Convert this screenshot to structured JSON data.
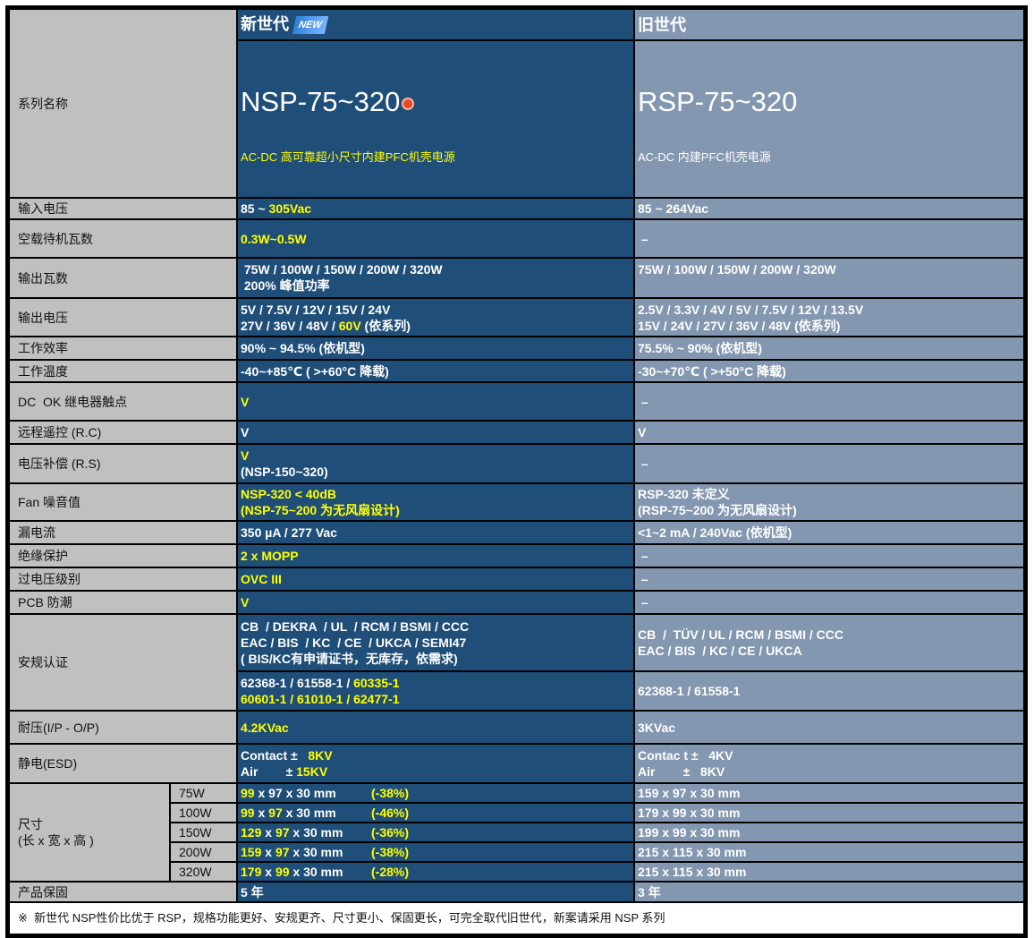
{
  "colors": {
    "label_bg": "#c0c0c0",
    "new_bg": "#1f4e79",
    "old_bg": "#8497b0",
    "highlight": "#ffff00"
  },
  "header": {
    "label": "系列名称",
    "new_generation": "新世代",
    "new_badge": "NEW",
    "new_series": "NSP-75~320",
    "new_series_icon": "crown-badge-icon",
    "new_desc": "AC-DC 高可靠超小尺寸内建PFC机壳电源",
    "old_generation": "旧世代",
    "old_series": "RSP-75~320",
    "old_desc": "AC-DC 内建PFC机壳电源"
  },
  "rows": [
    {
      "label": "输入电压",
      "new": [
        [
          {
            "t": "85 ~ "
          },
          {
            "t": "305Vac",
            "hl": true
          }
        ]
      ],
      "old": [
        [
          {
            "t": "85 ~ 264Vac"
          }
        ]
      ]
    },
    {
      "label": "空载待机瓦数",
      "new": [
        [
          {
            "t": "0.3W~0.5W",
            "hl": true
          }
        ]
      ],
      "old": [
        [
          {
            "t": " –"
          }
        ]
      ]
    },
    {
      "label": "输出瓦数",
      "top": true,
      "new": [
        [
          {
            "t": " 75W / 100W / 150W / 200W / 320W"
          }
        ],
        [
          {
            "t": " 200% 峰值功率"
          }
        ]
      ],
      "old": [
        [
          {
            "t": "75W / 100W / 150W / 200W / 320W"
          }
        ]
      ]
    },
    {
      "label": "输出电压",
      "new": [
        [
          {
            "t": "5V / 7.5V / 12V / 15V / 24V"
          }
        ],
        [
          {
            "t": "27V / 36V / 48V / "
          },
          {
            "t": "60V",
            "hl": true
          },
          {
            "t": " (依系列)"
          }
        ]
      ],
      "old": [
        [
          {
            "t": "2.5V / 3.3V / 4V / 5V / 7.5V / 12V / 13.5V"
          }
        ],
        [
          {
            "t": "15V / 24V / 27V / 36V / 48V (依系列)"
          }
        ]
      ]
    },
    {
      "label": "工作效率",
      "new": [
        [
          {
            "t": "90% ~ 94.5% (依机型)"
          }
        ]
      ],
      "old": [
        [
          {
            "t": "75.5% ~ 90% (依机型)"
          }
        ]
      ]
    },
    {
      "label": "工作温度",
      "new": [
        [
          {
            "t": "-40~+85℃ ( >+60°C 降载)"
          }
        ]
      ],
      "old": [
        [
          {
            "t": "-30~+70℃ ( >+50°C 降载)"
          }
        ]
      ]
    },
    {
      "label": "DC  OK 继电器触点",
      "new": [
        [
          {
            "t": "V",
            "hl": true
          }
        ]
      ],
      "old": [
        [
          {
            "t": " –"
          }
        ]
      ]
    },
    {
      "label": "远程遥控 (R.C)",
      "new": [
        [
          {
            "t": "V"
          }
        ]
      ],
      "old": [
        [
          {
            "t": "V"
          }
        ]
      ]
    },
    {
      "label": "电压补偿 (R.S)",
      "new": [
        [
          {
            "t": "V",
            "hl": true
          }
        ],
        [
          {
            "t": "(NSP-150~320)"
          }
        ]
      ],
      "old": [
        [
          {
            "t": " –"
          }
        ]
      ]
    },
    {
      "label": "Fan 噪音值",
      "new": [
        [
          {
            "t": "NSP-320 < 40dB",
            "hl": true
          }
        ],
        [
          {
            "t": "(NSP-75~200 为无风扇设计)",
            "hl": true
          }
        ]
      ],
      "old": [
        [
          {
            "t": "RSP-320 未定义"
          }
        ],
        [
          {
            "t": "(RSP-75~200 为无风扇设计)"
          }
        ]
      ]
    },
    {
      "label": "漏电流",
      "new": [
        [
          {
            "t": "350 µA / 277 Vac"
          }
        ]
      ],
      "old": [
        [
          {
            "t": "<1~2 mA / 240Vac (依机型)"
          }
        ]
      ]
    },
    {
      "label": "绝缘保护",
      "new": [
        [
          {
            "t": "2 x MOPP",
            "hl": true
          }
        ]
      ],
      "old": [
        [
          {
            "t": " –"
          }
        ]
      ]
    },
    {
      "label": "过电压级别",
      "new": [
        [
          {
            "t": "OVC III",
            "hl": true
          }
        ]
      ],
      "old": [
        [
          {
            "t": " –"
          }
        ]
      ]
    },
    {
      "label": "PCB 防潮",
      "new": [
        [
          {
            "t": "V",
            "hl": true
          }
        ]
      ],
      "old": [
        [
          {
            "t": " –"
          }
        ]
      ]
    }
  ],
  "safety": {
    "label": "安规认证",
    "new_a": [
      [
        {
          "t": "CB  / DEKRA  / UL  / RCM / BSMI / CCC"
        }
      ],
      [
        {
          "t": "EAC / BIS  / KC  / CE  / UKCA / SEMI47"
        }
      ],
      [
        {
          "t": "( BIS/KC有申请证书，无库存，依需求)"
        }
      ]
    ],
    "old_a": [
      [
        {
          "t": "CB  /  TÜV / UL / RCM / BSMI / CCC"
        }
      ],
      [
        {
          "t": "EAC / BIS  / KC / CE / UKCA"
        }
      ]
    ],
    "new_b": [
      [
        {
          "t": "62368-1 / 61558-1 / "
        },
        {
          "t": "60335-1",
          "hl": true
        }
      ],
      [
        {
          "t": "60601-1 / 61010-1 / 62477-1",
          "hl": true
        }
      ]
    ],
    "old_b": [
      [
        {
          "t": "62368-1 / 61558-1"
        }
      ]
    ]
  },
  "rows2": [
    {
      "label": "耐压(I/P - O/P)",
      "new": [
        [
          {
            "t": "4.2KVac",
            "hl": true
          }
        ]
      ],
      "old": [
        [
          {
            "t": "3KVac"
          }
        ]
      ]
    },
    {
      "label": "静电(ESD)",
      "new": [
        [
          {
            "t": "Contact ±   "
          },
          {
            "t": "8KV",
            "hl": true
          }
        ],
        [
          {
            "t": "Air        ± "
          },
          {
            "t": "15KV",
            "hl": true
          }
        ]
      ],
      "old": [
        [
          {
            "t": "Contac t ±   4KV"
          }
        ],
        [
          {
            "t": "Air        ±   8KV"
          }
        ]
      ]
    }
  ],
  "size": {
    "label_line1": "尺寸",
    "label_line2": "(长 x 宽 x 高 )",
    "items": [
      {
        "watt": "75W",
        "new": [
          {
            "t": "99",
            "hl": true
          },
          {
            "t": " x 97 x 30 mm"
          }
        ],
        "pct": "(-38%)",
        "old": "159 x 97 x 30 mm"
      },
      {
        "watt": "100W",
        "new": [
          {
            "t": "99",
            "hl": true
          },
          {
            "t": " x "
          },
          {
            "t": "97",
            "hl": true
          },
          {
            "t": " x 30 mm"
          }
        ],
        "pct": "(-46%)",
        "old": "179 x 99 x 30 mm"
      },
      {
        "watt": "150W",
        "new": [
          {
            "t": "129",
            "hl": true
          },
          {
            "t": " x "
          },
          {
            "t": "97",
            "hl": true
          },
          {
            "t": " x 30 mm"
          }
        ],
        "pct": "(-36%)",
        "old": "199 x 99 x 30 mm"
      },
      {
        "watt": "200W",
        "new": [
          {
            "t": "159",
            "hl": true
          },
          {
            "t": " x "
          },
          {
            "t": "97",
            "hl": true
          },
          {
            "t": " x 30 mm"
          }
        ],
        "pct": "(-38%)",
        "old": "215 x 115 x 30 mm"
      },
      {
        "watt": "320W",
        "new": [
          {
            "t": "179",
            "hl": true
          },
          {
            "t": " x "
          },
          {
            "t": "99",
            "hl": true
          },
          {
            "t": " x 30 mm"
          }
        ],
        "pct": "(-28%)",
        "old": "215 x 115 x 30 mm"
      }
    ]
  },
  "warranty": {
    "label": "产品保固",
    "new": "5 年",
    "old": "3 年"
  },
  "footnote": "※  新世代 NSP性价比优于 RSP，规格功能更好、安规更齐、尺寸更小、保固更长，可完全取代旧世代，新案请采用 NSP 系列"
}
